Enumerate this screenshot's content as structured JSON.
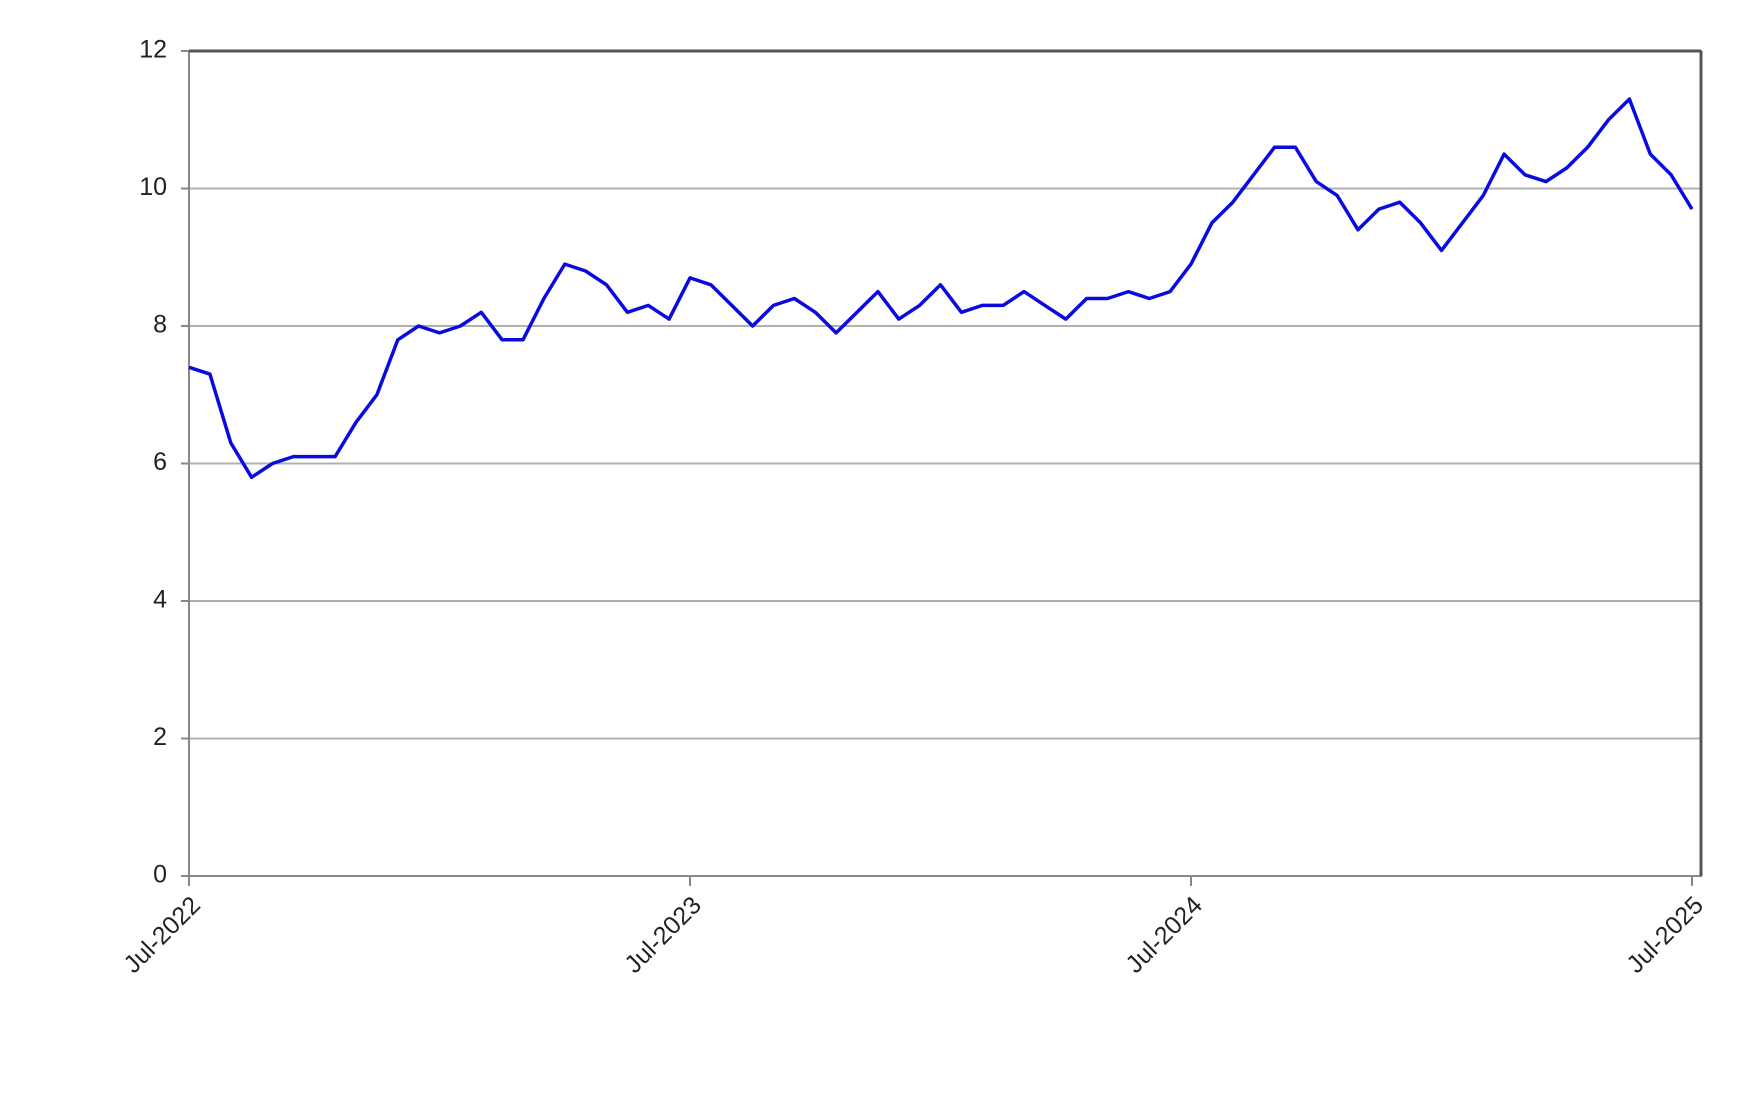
{
  "chart_data": {
    "type": "line",
    "categories": [
      "Jul-2022",
      null,
      null,
      null,
      null,
      null,
      null,
      null,
      null,
      null,
      null,
      null,
      null,
      null,
      null,
      null,
      null,
      null,
      null,
      null,
      null,
      null,
      null,
      null,
      "Jul-2023",
      null,
      null,
      null,
      null,
      null,
      null,
      null,
      null,
      null,
      null,
      null,
      null,
      null,
      null,
      null,
      null,
      null,
      null,
      null,
      null,
      null,
      null,
      null,
      "Jul-2024",
      null,
      null,
      null,
      null,
      null,
      null,
      null,
      null,
      null,
      null,
      null,
      null,
      null,
      null,
      null,
      null,
      null,
      null,
      null,
      null,
      null,
      null,
      null,
      "Jul-2025"
    ],
    "series": [
      {
        "color": "#0a0ae0",
        "values": [
          7.4,
          7.3,
          6.3,
          5.8,
          6.0,
          6.1,
          6.1,
          6.1,
          6.6,
          7.0,
          7.8,
          8.0,
          7.9,
          8.0,
          8.2,
          7.8,
          7.8,
          8.4,
          8.9,
          8.8,
          8.6,
          8.2,
          8.3,
          8.1,
          8.7,
          8.6,
          8.3,
          8.0,
          8.3,
          8.4,
          8.2,
          7.9,
          8.2,
          8.5,
          8.1,
          8.3,
          8.6,
          8.2,
          8.3,
          8.3,
          8.5,
          8.3,
          8.1,
          8.4,
          8.4,
          8.5,
          8.4,
          8.5,
          8.9,
          9.5,
          9.8,
          10.2,
          10.6,
          10.6,
          10.1,
          9.9,
          9.4,
          9.7,
          9.8,
          9.5,
          9.1,
          9.5,
          9.9,
          10.5,
          10.2,
          10.1,
          10.3,
          10.6,
          11.0,
          11.3,
          10.5,
          10.2,
          9.7
        ]
      }
    ],
    "ylim": [
      0,
      12
    ],
    "yticks": [
      0,
      2,
      4,
      6,
      8,
      10,
      12
    ],
    "grid": true
  }
}
